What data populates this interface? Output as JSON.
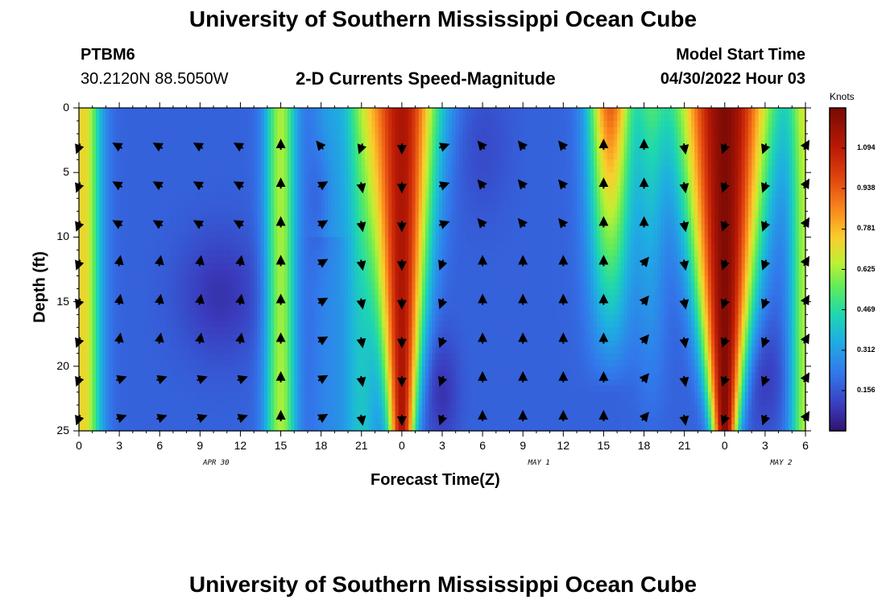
{
  "header": {
    "title": "University of Southern Mississippi Ocean Cube",
    "station": "PTBM6",
    "coords": "30.2120N  88.5050W",
    "subtitle": "2-D Currents Speed-Magnitude",
    "model_label": "Model Start Time",
    "model_time": "04/30/2022 Hour 03"
  },
  "footer": {
    "title": "University of Southern Mississippi Ocean Cube"
  },
  "chart_data": {
    "type": "heatmap",
    "title": "2-D Currents Speed-Magnitude",
    "xlabel": "Forecast Time(Z)",
    "ylabel": "Depth (ft)",
    "ylim": [
      0,
      25
    ],
    "y_ticks": [
      "0",
      "5",
      "10",
      "15",
      "20",
      "25"
    ],
    "x_tick_labels": [
      "0",
      "3",
      "6",
      "9",
      "12",
      "15",
      "18",
      "21",
      "0",
      "3",
      "6",
      "9",
      "12",
      "15",
      "18",
      "21",
      "0",
      "3",
      "6"
    ],
    "date_labels": [
      {
        "label": "APR 30",
        "hour": 9
      },
      {
        "label": "MAY 1",
        "hour": 33
      },
      {
        "label": "MAY 2",
        "hour": 51
      }
    ],
    "hours_range": [
      0,
      54
    ],
    "colorbar": {
      "units": "Knots",
      "ticks": [
        "1.094",
        "0.938",
        "0.781",
        "0.625",
        "0.469",
        "0.312",
        "0.156"
      ],
      "range": [
        0,
        1.25
      ]
    },
    "speed_profile_hours": [
      0,
      1,
      2,
      3,
      4,
      5,
      6,
      7,
      8,
      9,
      10,
      11,
      12,
      13,
      14,
      15,
      16,
      17,
      18,
      19,
      20,
      21,
      22,
      23,
      24,
      25,
      26,
      27,
      28,
      29,
      30,
      31,
      32,
      33,
      34,
      35,
      36,
      37,
      38,
      39,
      40,
      41,
      42,
      43,
      44,
      45,
      46,
      47,
      48,
      49,
      50,
      51,
      52,
      53,
      54
    ],
    "vector_hours": [
      0,
      3,
      6,
      9,
      12,
      15,
      18,
      21,
      24,
      27,
      30,
      33,
      36,
      39,
      42,
      45,
      48,
      51,
      54
    ],
    "vector_depths_ft": [
      3,
      6,
      9,
      12,
      15,
      18,
      21,
      24
    ]
  }
}
